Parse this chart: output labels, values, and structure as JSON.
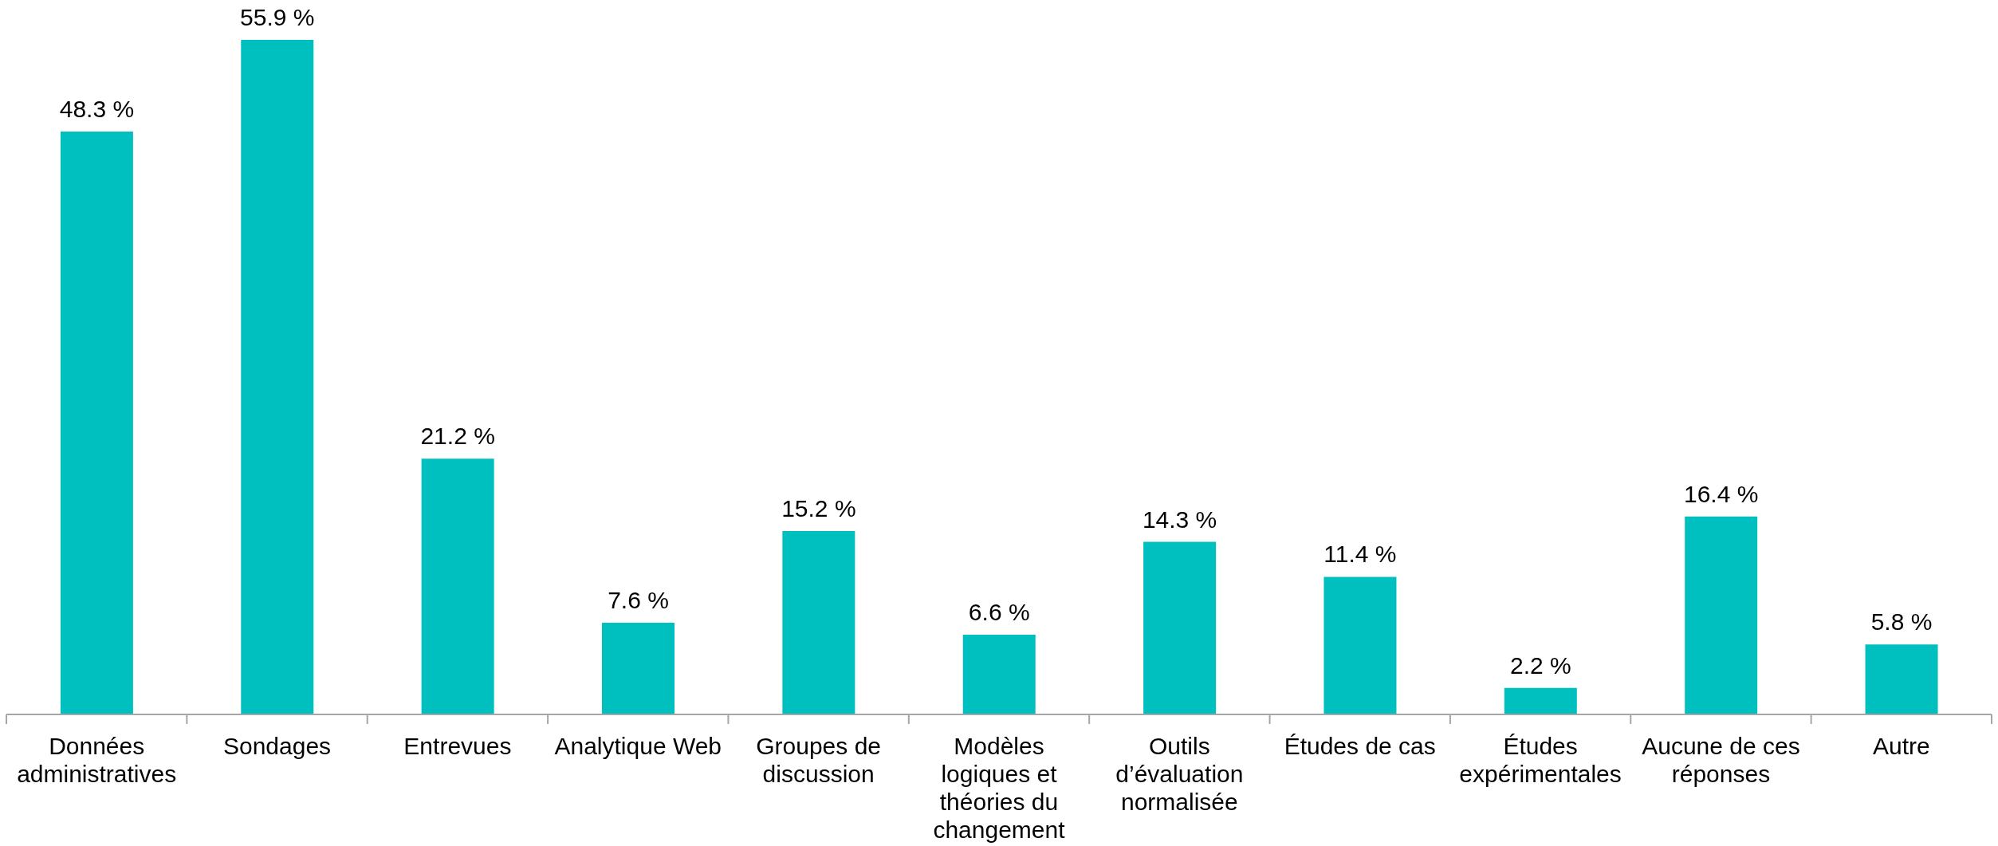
{
  "chart_data": {
    "type": "bar",
    "categories": [
      "Données administratives",
      "Sondages",
      "Entrevues",
      "Analytique Web",
      "Groupes de discussion",
      "Modèles logiques et théories du changement",
      "Outils d’évaluation normalisée",
      "Études de cas",
      "Études expérimentales",
      "Aucune de ces réponses",
      "Autre"
    ],
    "values": [
      48.3,
      55.9,
      21.2,
      7.6,
      15.2,
      6.6,
      14.3,
      11.4,
      2.2,
      16.4,
      5.8
    ],
    "value_labels": [
      "48.3 %",
      "55.9 %",
      "21.2 %",
      "7.6 %",
      "15.2 %",
      "6.6 %",
      "14.3 %",
      "11.4 %",
      "2.2 %",
      "16.4 %",
      "5.8 %"
    ],
    "color": "#00bfbf"
  }
}
